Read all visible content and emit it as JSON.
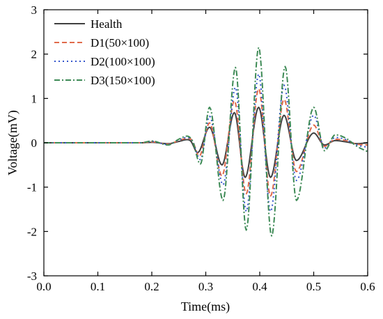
{
  "chart_data": {
    "type": "line",
    "title": "",
    "xlabel": "Time(ms)",
    "ylabel": "Voltage(mV)",
    "xlim": [
      0,
      0.6
    ],
    "ylim": [
      -3,
      3
    ],
    "xticks": [
      0.0,
      0.1,
      0.2,
      0.3,
      0.4,
      0.5,
      0.6
    ],
    "xtick_labels": [
      "0.0",
      "0.1",
      "0.2",
      "0.3",
      "0.4",
      "0.5",
      "0.6"
    ],
    "yticks": [
      -3,
      -2,
      -1,
      0,
      1,
      2,
      3
    ],
    "ytick_labels": [
      "-3",
      "-2",
      "-1",
      "0",
      "1",
      "2",
      "3"
    ],
    "grid": false,
    "legend_position": "top-left",
    "series": [
      {
        "name": "Health",
        "color": "#404040",
        "dash": "solid",
        "x": [
          0,
          0.18,
          0.2,
          0.23,
          0.25,
          0.265,
          0.272,
          0.285,
          0.307,
          0.33,
          0.353,
          0.373,
          0.398,
          0.42,
          0.445,
          0.468,
          0.5,
          0.52,
          0.54,
          0.56,
          0.58,
          0.6
        ],
        "y": [
          0,
          0,
          0.01,
          -0.02,
          0.03,
          0.07,
          0.04,
          -0.22,
          0.35,
          -0.5,
          0.68,
          -0.78,
          0.8,
          -0.78,
          0.62,
          -0.4,
          0.22,
          -0.05,
          0.05,
          0.02,
          -0.02,
          0
        ]
      },
      {
        "name": "D1(50×100)",
        "color": "#e06a4a",
        "dash": "dashed",
        "x": [
          0,
          0.18,
          0.2,
          0.23,
          0.25,
          0.265,
          0.275,
          0.288,
          0.307,
          0.33,
          0.353,
          0.375,
          0.398,
          0.42,
          0.445,
          0.468,
          0.5,
          0.52,
          0.54,
          0.56,
          0.58,
          0.6
        ],
        "y": [
          0,
          0,
          0.02,
          -0.03,
          0.05,
          0.1,
          0.05,
          -0.3,
          0.45,
          -0.75,
          0.95,
          -1.15,
          1.22,
          -1.2,
          0.98,
          -0.65,
          0.4,
          -0.08,
          0.08,
          0.05,
          -0.03,
          -0.05
        ]
      },
      {
        "name": "D2(100×100)",
        "color": "#3355cc",
        "dash": "dotted",
        "x": [
          0,
          0.18,
          0.2,
          0.23,
          0.25,
          0.265,
          0.275,
          0.29,
          0.307,
          0.332,
          0.355,
          0.375,
          0.398,
          0.42,
          0.445,
          0.468,
          0.5,
          0.52,
          0.54,
          0.56,
          0.58,
          0.6
        ],
        "y": [
          0,
          0,
          0.03,
          -0.04,
          0.06,
          0.12,
          0.05,
          -0.38,
          0.6,
          -0.95,
          1.25,
          -1.55,
          1.55,
          -1.55,
          1.3,
          -0.85,
          0.62,
          -0.12,
          0.12,
          0.07,
          -0.05,
          -0.1
        ]
      },
      {
        "name": "D3(150×100)",
        "color": "#3d8a55",
        "dash": "dashdot",
        "x": [
          0,
          0.18,
          0.2,
          0.23,
          0.25,
          0.265,
          0.275,
          0.29,
          0.307,
          0.332,
          0.355,
          0.375,
          0.398,
          0.422,
          0.447,
          0.468,
          0.5,
          0.52,
          0.54,
          0.56,
          0.58,
          0.6
        ],
        "y": [
          0,
          0,
          0.04,
          -0.05,
          0.08,
          0.15,
          0.05,
          -0.48,
          0.8,
          -1.3,
          1.7,
          -1.97,
          2.15,
          -2.1,
          1.72,
          -1.3,
          0.8,
          -0.18,
          0.18,
          0.1,
          -0.08,
          -0.2
        ]
      }
    ]
  }
}
